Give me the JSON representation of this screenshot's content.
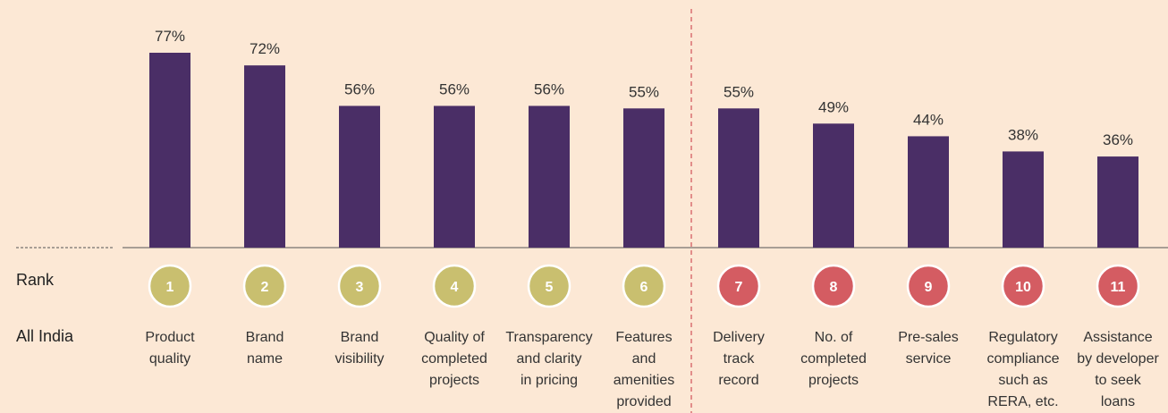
{
  "chart_data": {
    "type": "bar",
    "categories": [
      "Product\nquality",
      "Brand\nname",
      "Brand\nvisibility",
      "Quality of\ncompleted\nprojects",
      "Transparency\nand clarity\nin pricing",
      "Features\nand\namenities\nprovided",
      "Delivery\ntrack\nrecord",
      "No. of\ncompleted\nprojects",
      "Pre-sales\nservice",
      "Regulatory\ncompliance\nsuch as\nRERA, etc.",
      "Assistance\nby developer\nto seek\nloans"
    ],
    "values": [
      77,
      72,
      56,
      56,
      56,
      55,
      55,
      49,
      44,
      38,
      36
    ],
    "value_labels": [
      "77%",
      "72%",
      "56%",
      "56%",
      "56%",
      "55%",
      "55%",
      "49%",
      "44%",
      "38%",
      "36%"
    ],
    "color": "#4a2e66",
    "row_labels": {
      "rank": "Rank",
      "region": "All India"
    },
    "ranks": [
      "1",
      "2",
      "3",
      "4",
      "5",
      "6",
      "7",
      "8",
      "9",
      "10",
      "11"
    ],
    "rank_colors": [
      "#c9bf6f",
      "#c9bf6f",
      "#c9bf6f",
      "#c9bf6f",
      "#c9bf6f",
      "#c9bf6f",
      "#d45c62",
      "#d45c62",
      "#d45c62",
      "#d45c62",
      "#d45c62"
    ]
  }
}
